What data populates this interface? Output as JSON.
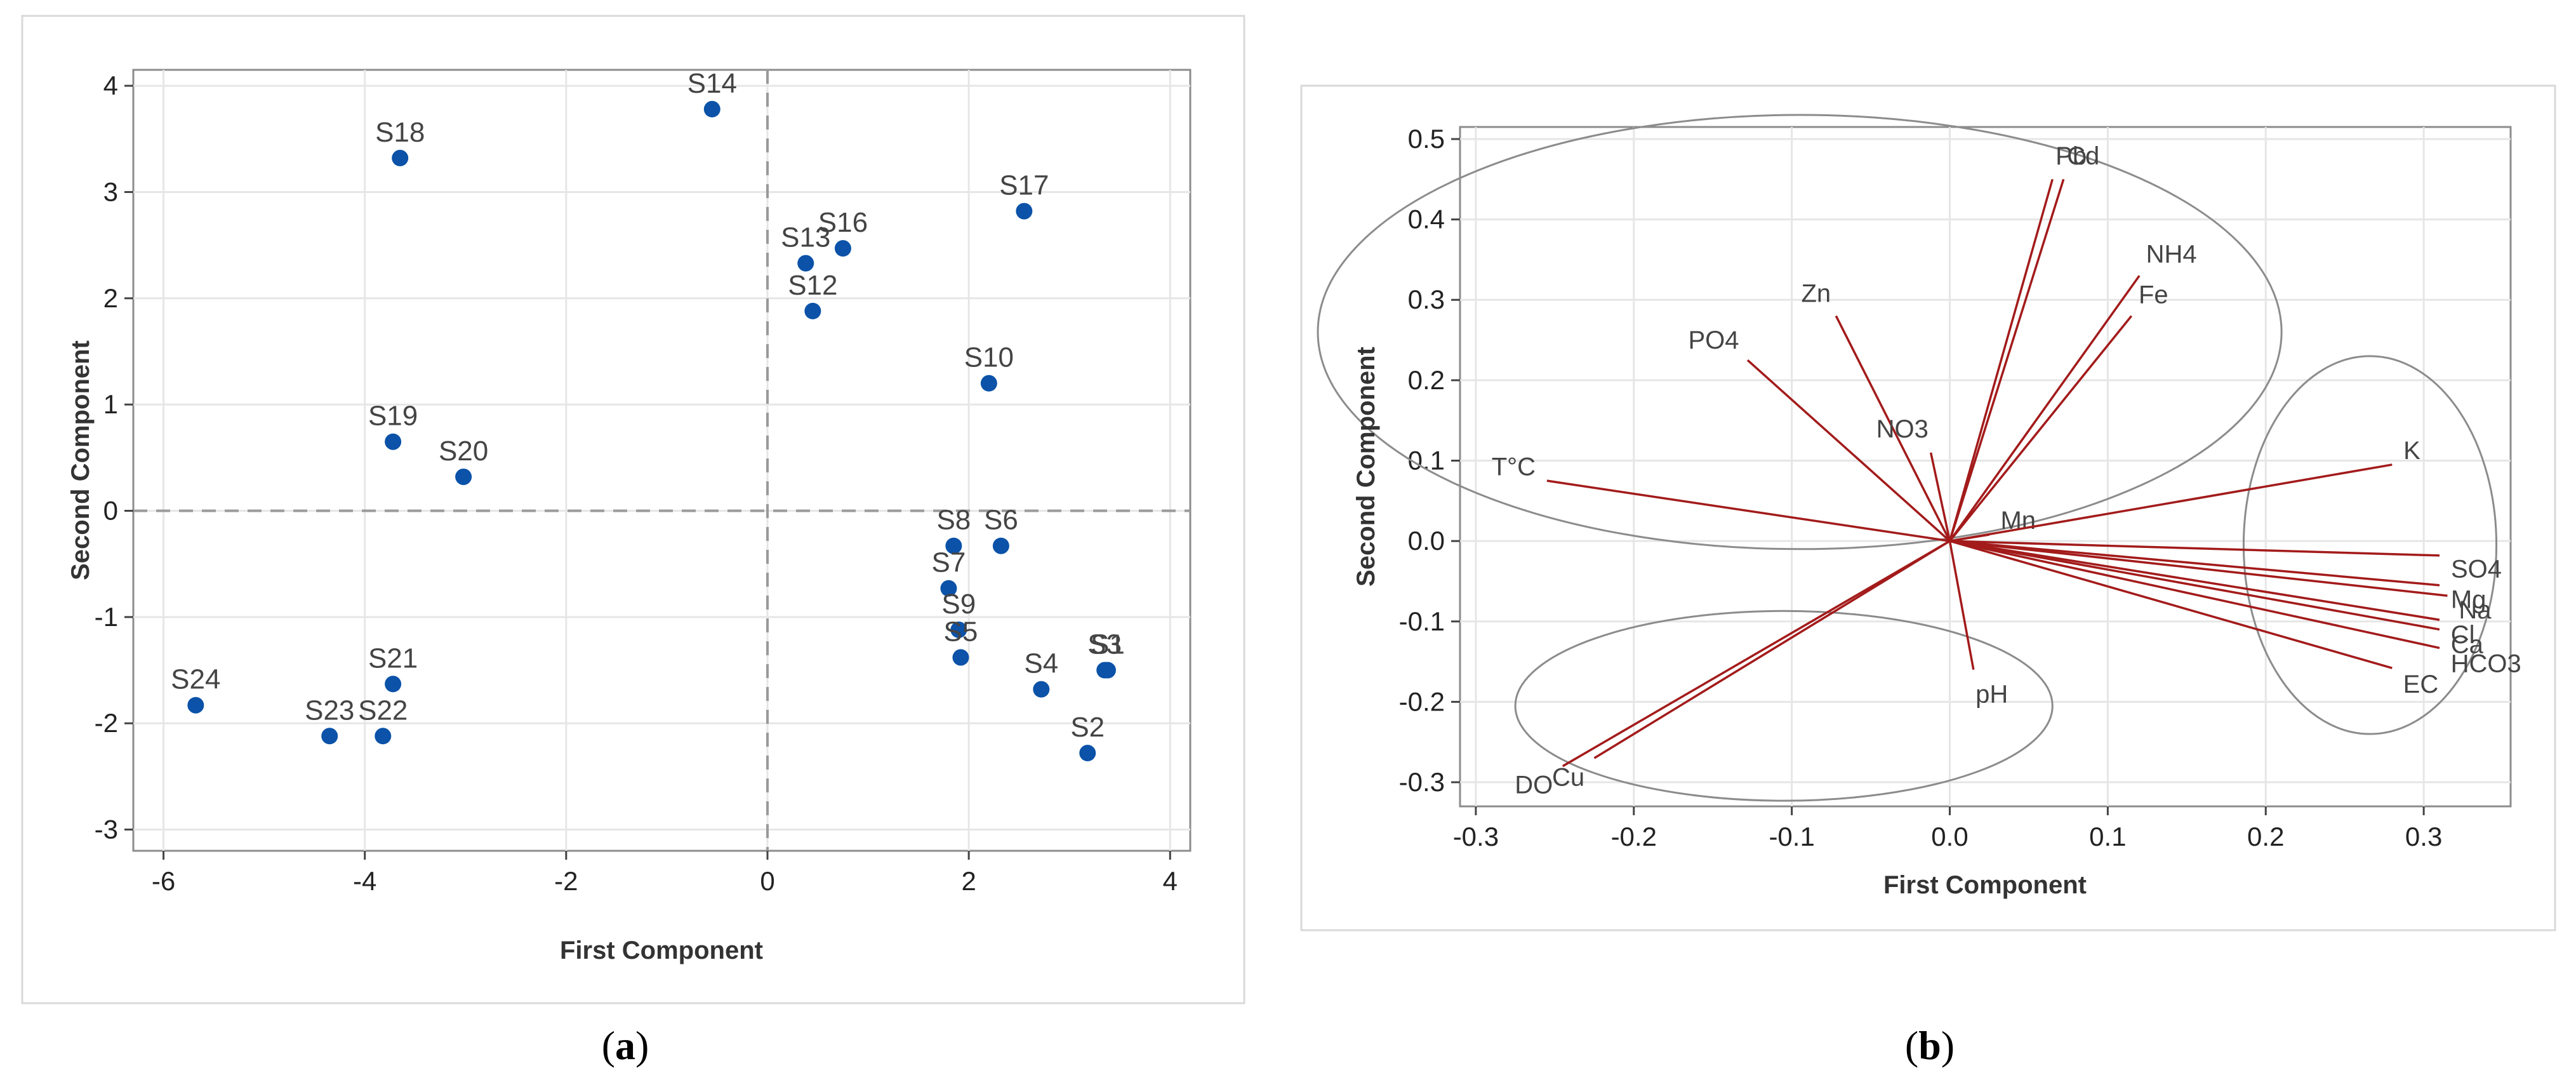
{
  "chart_data": [
    {
      "type": "scatter",
      "caption": "(a)",
      "caption_letter": "a",
      "xlabel": "First Component",
      "ylabel": "Second Component",
      "xlim": [
        -6.3,
        4.2
      ],
      "ylim": [
        -3.2,
        4.15
      ],
      "xticks": [
        -6,
        -4,
        -2,
        0,
        2,
        4
      ],
      "yticks": [
        -3,
        -2,
        -1,
        0,
        1,
        2,
        3,
        4
      ],
      "reference_lines": {
        "x": 0,
        "y": 0,
        "style": "dashed"
      },
      "marker_color": "#0b52a8",
      "points": [
        {
          "label": "S14",
          "x": -0.55,
          "y": 3.78
        },
        {
          "label": "S18",
          "x": -3.65,
          "y": 3.32
        },
        {
          "label": "S17",
          "x": 2.55,
          "y": 2.82
        },
        {
          "label": "S16",
          "x": 0.75,
          "y": 2.47
        },
        {
          "label": "S13",
          "x": 0.38,
          "y": 2.33
        },
        {
          "label": "S12",
          "x": 0.45,
          "y": 1.88
        },
        {
          "label": "S10",
          "x": 2.2,
          "y": 1.2
        },
        {
          "label": "S19",
          "x": -3.72,
          "y": 0.65
        },
        {
          "label": "S20",
          "x": -3.02,
          "y": 0.32
        },
        {
          "label": "S8",
          "x": 1.85,
          "y": -0.33
        },
        {
          "label": "S6",
          "x": 2.32,
          "y": -0.33
        },
        {
          "label": "S7",
          "x": 1.8,
          "y": -0.73
        },
        {
          "label": "S9",
          "x": 1.9,
          "y": -1.12
        },
        {
          "label": "S5",
          "x": 1.92,
          "y": -1.38
        },
        {
          "label": "S3",
          "x": 3.35,
          "y": -1.5
        },
        {
          "label": "S1",
          "x": 3.38,
          "y": -1.5
        },
        {
          "label": "S4",
          "x": 2.72,
          "y": -1.68
        },
        {
          "label": "S2",
          "x": 3.18,
          "y": -2.28
        },
        {
          "label": "S21",
          "x": -3.72,
          "y": -1.63
        },
        {
          "label": "S24",
          "x": -5.68,
          "y": -1.83
        },
        {
          "label": "S23",
          "x": -4.35,
          "y": -2.12
        },
        {
          "label": "S22",
          "x": -3.82,
          "y": -2.12
        }
      ]
    },
    {
      "type": "biplot",
      "caption": "(b)",
      "caption_letter": "b",
      "xlabel": "First Component",
      "ylabel": "Second Component",
      "xlim": [
        -0.31,
        0.355
      ],
      "ylim": [
        -0.33,
        0.515
      ],
      "xticks": [
        -0.3,
        -0.2,
        -0.1,
        0.0,
        0.1,
        0.2,
        0.3
      ],
      "yticks": [
        -0.3,
        -0.2,
        -0.1,
        0.0,
        0.1,
        0.2,
        0.3,
        0.4,
        0.5
      ],
      "xtick_labels": [
        "-0.3",
        "-0.2",
        "-0.1",
        "0.0",
        "0.1",
        "0.2",
        "0.3"
      ],
      "ytick_labels": [
        "-0.3",
        "-0.2",
        "-0.1",
        "0.0",
        "0.1",
        "0.2",
        "0.3",
        "0.4",
        "0.5"
      ],
      "vector_color": "#a31b1b",
      "cluster_ellipses": [
        {
          "cx": -0.095,
          "cy": 0.26,
          "rx": 0.305,
          "ry": 0.27
        },
        {
          "cx": -0.105,
          "cy": -0.205,
          "rx": 0.17,
          "ry": 0.118
        },
        {
          "cx": 0.266,
          "cy": -0.005,
          "rx": 0.08,
          "ry": 0.235
        }
      ],
      "loadings": [
        {
          "label": "Pb",
          "x": 0.065,
          "y": 0.45
        },
        {
          "label": "Cd",
          "x": 0.072,
          "y": 0.45
        },
        {
          "label": "NH4",
          "x": 0.12,
          "y": 0.33
        },
        {
          "label": "Fe",
          "x": 0.115,
          "y": 0.28
        },
        {
          "label": "Zn",
          "x": -0.072,
          "y": 0.28
        },
        {
          "label": "PO4",
          "x": -0.128,
          "y": 0.225
        },
        {
          "label": "NO3",
          "x": -0.012,
          "y": 0.11
        },
        {
          "label": "T°C",
          "x": -0.255,
          "y": 0.075
        },
        {
          "label": "Mn",
          "x": 0.025,
          "y": 0.008
        },
        {
          "label": "K",
          "x": 0.28,
          "y": 0.095
        },
        {
          "label": "SO4",
          "x": 0.31,
          "y": -0.018
        },
        {
          "label": "Mg",
          "x": 0.31,
          "y": -0.055
        },
        {
          "label": "Na",
          "x": 0.315,
          "y": -0.068
        },
        {
          "label": "Cl",
          "x": 0.31,
          "y": -0.098
        },
        {
          "label": "Ca",
          "x": 0.31,
          "y": -0.11
        },
        {
          "label": "HCO3",
          "x": 0.31,
          "y": -0.133
        },
        {
          "label": "EC",
          "x": 0.28,
          "y": -0.158
        },
        {
          "label": "pH",
          "x": 0.015,
          "y": -0.16
        },
        {
          "label": "DO",
          "x": -0.245,
          "y": -0.28
        },
        {
          "label": "Cu",
          "x": -0.225,
          "y": -0.27
        }
      ]
    }
  ]
}
